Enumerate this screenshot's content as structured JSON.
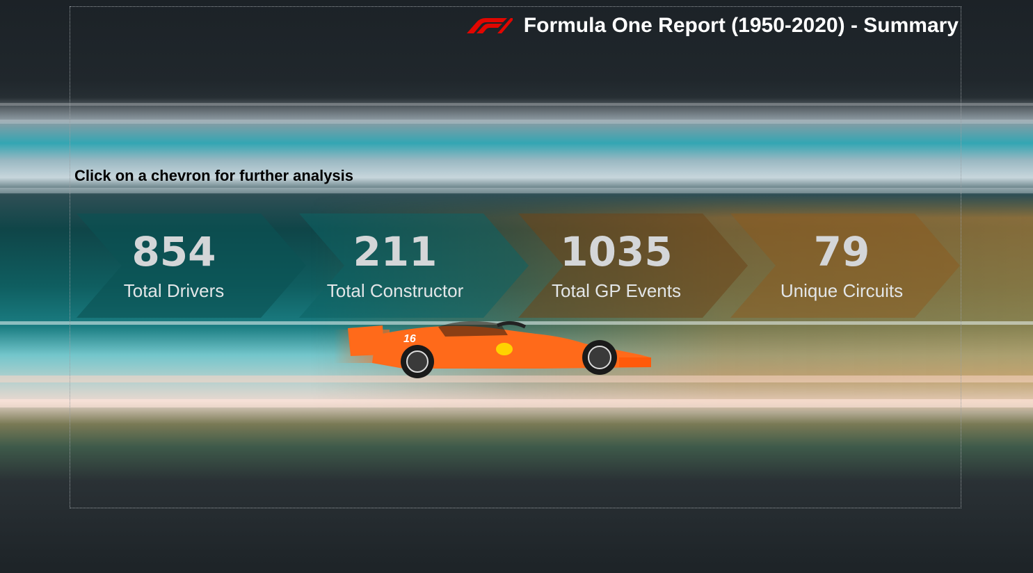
{
  "header": {
    "title": "Formula One Report (1950-2020) - Summary",
    "logo_icon": "f1-logo-icon",
    "logo_color": "#e10600"
  },
  "hint": {
    "text": "Click on a chevron for further analysis"
  },
  "kpis": [
    {
      "value": "854",
      "label": "Total Drivers",
      "color": "#0b5b5f"
    },
    {
      "value": "211",
      "label": "Total Constructor",
      "color": "#0e6f73"
    },
    {
      "value": "1035",
      "label": "Total GP Events",
      "color": "#8a5a24"
    },
    {
      "value": "79",
      "label": "Unique Circuits",
      "color": "#b57a33"
    }
  ],
  "car": {
    "icon": "race-car-icon",
    "body_color": "#ff6a1a",
    "number": "16"
  }
}
